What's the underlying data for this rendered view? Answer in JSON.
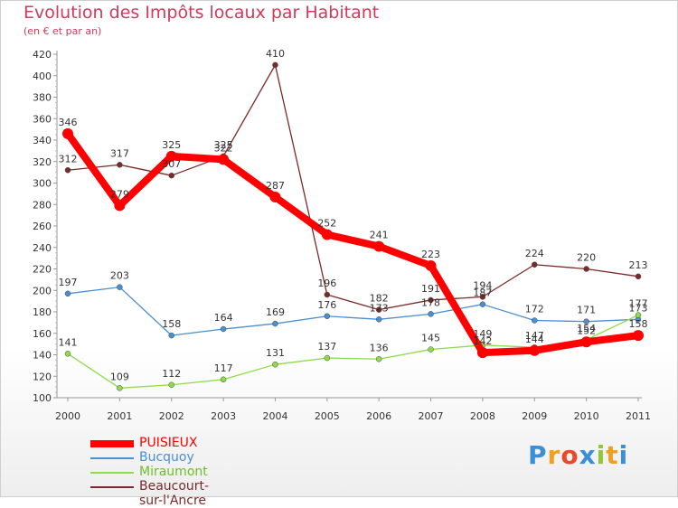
{
  "title": "Evolution des Impôts locaux par Habitant",
  "subtitle": "(en € et par an)",
  "logo": "Proxiti",
  "chart_data": {
    "type": "line",
    "x": [
      "2000",
      "2001",
      "2002",
      "2003",
      "2004",
      "2005",
      "2006",
      "2007",
      "2008",
      "2009",
      "2010",
      "2011"
    ],
    "ylim": [
      100,
      420
    ],
    "yticks": [
      100,
      120,
      140,
      160,
      180,
      200,
      220,
      240,
      260,
      280,
      300,
      320,
      340,
      360,
      380,
      400,
      420
    ],
    "grid": false,
    "legend_position": "bottom-left",
    "series": [
      {
        "name": "Beaucourt-sur-l'Ancre",
        "color": "#7a2a2a",
        "values": [
          312,
          317,
          307,
          325,
          410,
          196,
          182,
          191,
          194,
          224,
          220,
          213
        ]
      },
      {
        "name": "Bucquoy",
        "color": "#4a8fd0",
        "values": [
          197,
          203,
          158,
          164,
          169,
          176,
          173,
          178,
          187,
          172,
          171,
          173
        ]
      },
      {
        "name": "Miraumont",
        "color": "#8fdc4a",
        "values": [
          141,
          109,
          112,
          117,
          131,
          137,
          136,
          145,
          149,
          147,
          154,
          177
        ]
      },
      {
        "name": "PUISIEUX",
        "color": "#ff0000",
        "values": [
          346,
          279,
          325,
          322,
          287,
          252,
          241,
          223,
          142,
          144,
          152,
          158
        ]
      }
    ]
  }
}
